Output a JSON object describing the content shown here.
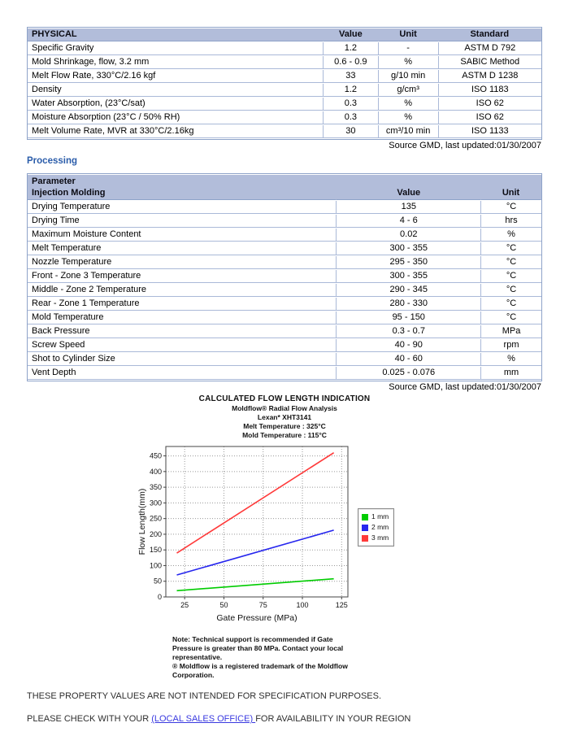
{
  "physical_table": {
    "title": "PHYSICAL",
    "columns": [
      "Value",
      "Unit",
      "Standard"
    ],
    "rows": [
      [
        "Specific Gravity",
        "1.2",
        "-",
        "ASTM D 792"
      ],
      [
        "Mold Shrinkage, flow, 3.2 mm",
        "0.6 - 0.9",
        "%",
        "SABIC Method"
      ],
      [
        "Melt Flow Rate, 330°C/2.16 kgf",
        "33",
        "g/10 min",
        "ASTM D 1238"
      ],
      [
        "Density",
        "1.2",
        "g/cm³",
        "ISO 1183"
      ],
      [
        "Water Absorption, (23°C/sat)",
        "0.3",
        "%",
        "ISO 62"
      ],
      [
        "Moisture Absorption (23°C / 50% RH)",
        "0.3",
        "%",
        "ISO 62"
      ],
      [
        "Melt Volume Rate, MVR at 330°C/2.16kg",
        "30",
        "cm³/10 min",
        "ISO 1133"
      ]
    ],
    "source_note": "Source GMD, last updated:01/30/2007"
  },
  "processing": {
    "section_title": "Processing",
    "header_line1": "Parameter",
    "header_line2": "Injection Molding",
    "columns": [
      "Value",
      "Unit"
    ],
    "rows": [
      [
        "Drying Temperature",
        "135",
        "°C"
      ],
      [
        "Drying Time",
        "4 - 6",
        "hrs"
      ],
      [
        "Maximum Moisture Content",
        "0.02",
        "%"
      ],
      [
        "Melt Temperature",
        "300 - 355",
        "°C"
      ],
      [
        "Nozzle Temperature",
        "295 - 350",
        "°C"
      ],
      [
        "Front - Zone 3 Temperature",
        "300 - 355",
        "°C"
      ],
      [
        "Middle - Zone 2 Temperature",
        "290 - 345",
        "°C"
      ],
      [
        "Rear - Zone 1 Temperature",
        "280 - 330",
        "°C"
      ],
      [
        "Mold Temperature",
        "95 - 150",
        "°C"
      ],
      [
        "Back Pressure",
        "0.3 - 0.7",
        "MPa"
      ],
      [
        "Screw Speed",
        "40 - 90",
        "rpm"
      ],
      [
        "Shot to Cylinder Size",
        "40 - 60",
        "%"
      ],
      [
        "Vent Depth",
        "0.025 - 0.076",
        "mm"
      ]
    ],
    "source_note": "Source GMD, last updated:01/30/2007"
  },
  "chart_data": {
    "type": "line",
    "title": "CALCULATED FLOW LENGTH INDICATION",
    "subtitle_lines": [
      "Moldflow® Radial Flow Analysis",
      "Lexan*  XHT3141",
      "Melt Temperature : 325°C",
      "Mold Temperature : 115°C"
    ],
    "xlabel": "Gate Pressure (MPa)",
    "ylabel": "Flow Length(mm)",
    "xlim": [
      13,
      129
    ],
    "ylim": [
      0,
      480
    ],
    "xticks": [
      25,
      50,
      75,
      100,
      125
    ],
    "yticks": [
      0,
      50,
      100,
      150,
      200,
      250,
      300,
      350,
      400,
      450
    ],
    "grid": true,
    "legend_position": "right",
    "series": [
      {
        "name": "1 mm",
        "color": "#00cc00",
        "x": [
          20,
          120
        ],
        "y": [
          20,
          58
        ]
      },
      {
        "name": "2 mm",
        "color": "#2626ee",
        "x": [
          20,
          120
        ],
        "y": [
          70,
          213
        ]
      },
      {
        "name": "3 mm",
        "color": "#ff3a3a",
        "x": [
          20,
          120
        ],
        "y": [
          140,
          460
        ]
      }
    ]
  },
  "chart_note_lines": [
    "Note:  Technical support is recommended if Gate",
    "Pressure is greater than 80 MPa. Contact your local",
    "representative.",
    "® Moldflow is a registered trademark of the Moldflow",
    "Corporation."
  ],
  "footer": {
    "line1": "THESE PROPERTY VALUES ARE NOT INTENDED FOR SPECIFICATION PURPOSES.",
    "line2_prefix": "PLEASE CHECK WITH YOUR ",
    "line2_link": "(LOCAL SALES OFFICE) ",
    "line2_suffix": "FOR AVAILABILITY IN YOUR REGION"
  }
}
